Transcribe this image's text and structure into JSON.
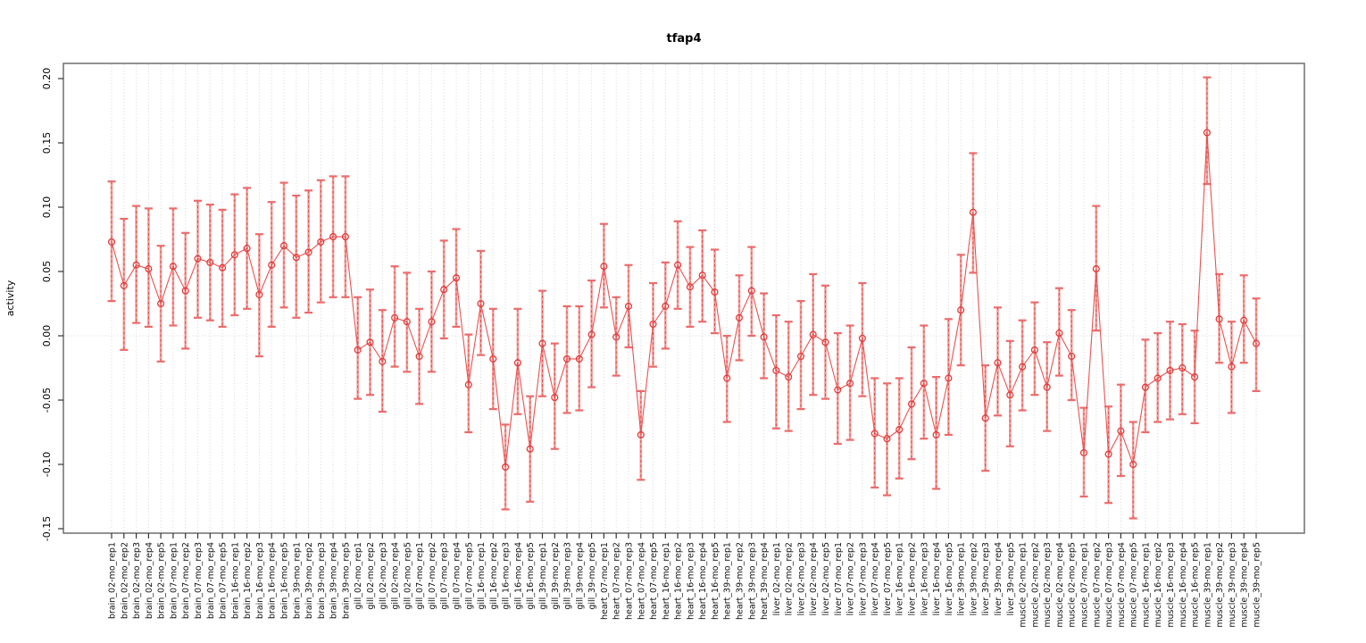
{
  "chart_data": {
    "type": "line",
    "title": "tfap4",
    "xlabel": "",
    "ylabel": "activity",
    "ylim": [
      -0.16,
      0.215
    ],
    "ytick_labels": [
      "0.20",
      "0.15",
      "0.10",
      "0.05",
      "0.00",
      "-0.05",
      "-0.10",
      "-0.15"
    ],
    "ytick_values": [
      0.2,
      0.15,
      0.1,
      0.05,
      0.0,
      -0.05,
      -0.1,
      -0.15
    ],
    "grid": "vertical dotted gridline at every category; horizontal dotted line at y=0; no legend",
    "point_style": "open circles with vertical error bars, connected by line",
    "categories": [
      "brain_02-mo_rep1",
      "brain_02-mo_rep2",
      "brain_02-mo_rep3",
      "brain_02-mo_rep4",
      "brain_02-mo_rep5",
      "brain_07-mo_rep1",
      "brain_07-mo_rep2",
      "brain_07-mo_rep3",
      "brain_07-mo_rep4",
      "brain_07-mo_rep5",
      "brain_16-mo_rep1",
      "brain_16-mo_rep2",
      "brain_16-mo_rep3",
      "brain_16-mo_rep4",
      "brain_16-mo_rep5",
      "brain_39-mo_rep1",
      "brain_39-mo_rep2",
      "brain_39-mo_rep3",
      "brain_39-mo_rep4",
      "brain_39-mo_rep5",
      "gill_02-mo_rep1",
      "gill_02-mo_rep2",
      "gill_02-mo_rep3",
      "gill_02-mo_rep4",
      "gill_02-mo_rep5",
      "gill_07-mo_rep1",
      "gill_07-mo_rep2",
      "gill_07-mo_rep3",
      "gill_07-mo_rep4",
      "gill_07-mo_rep5",
      "gill_16-mo_rep1",
      "gill_16-mo_rep2",
      "gill_16-mo_rep3",
      "gill_16-mo_rep4",
      "gill_16-mo_rep5",
      "gill_39-mo_rep1",
      "gill_39-mo_rep2",
      "gill_39-mo_rep3",
      "gill_39-mo_rep4",
      "gill_39-mo_rep5",
      "heart_07-mo_rep1",
      "heart_07-mo_rep2",
      "heart_07-mo_rep3",
      "heart_07-mo_rep4",
      "heart_07-mo_rep5",
      "heart_16-mo_rep1",
      "heart_16-mo_rep2",
      "heart_16-mo_rep3",
      "heart_16-mo_rep4",
      "heart_16-mo_rep5",
      "heart_39-mo_rep1",
      "heart_39-mo_rep2",
      "heart_39-mo_rep3",
      "heart_39-mo_rep4",
      "liver_02-mo_rep1",
      "liver_02-mo_rep2",
      "liver_02-mo_rep3",
      "liver_02-mo_rep4",
      "liver_02-mo_rep5",
      "liver_07-mo_rep1",
      "liver_07-mo_rep2",
      "liver_07-mo_rep3",
      "liver_07-mo_rep4",
      "liver_07-mo_rep5",
      "liver_16-mo_rep1",
      "liver_16-mo_rep2",
      "liver_16-mo_rep3",
      "liver_16-mo_rep4",
      "liver_16-mo_rep5",
      "liver_39-mo_rep1",
      "liver_39-mo_rep2",
      "liver_39-mo_rep3",
      "liver_39-mo_rep4",
      "liver_39-mo_rep5",
      "muscle_02-mo_rep1",
      "muscle_02-mo_rep2",
      "muscle_02-mo_rep3",
      "muscle_02-mo_rep4",
      "muscle_02-mo_rep5",
      "muscle_07-mo_rep1",
      "muscle_07-mo_rep2",
      "muscle_07-mo_rep3",
      "muscle_07-mo_rep4",
      "muscle_07-mo_rep5",
      "muscle_16-mo_rep1",
      "muscle_16-mo_rep2",
      "muscle_16-mo_rep3",
      "muscle_16-mo_rep4",
      "muscle_16-mo_rep5",
      "muscle_39-mo_rep1",
      "muscle_39-mo_rep2",
      "muscle_39-mo_rep3",
      "muscle_39-mo_rep4",
      "muscle_39-mo_rep5"
    ],
    "series": [
      {
        "name": "activity",
        "values": [
          0.073,
          0.039,
          0.055,
          0.052,
          0.025,
          0.054,
          0.035,
          0.06,
          0.057,
          0.053,
          0.063,
          0.068,
          0.032,
          0.055,
          0.07,
          0.061,
          0.065,
          0.073,
          0.077,
          0.077,
          -0.011,
          -0.005,
          -0.02,
          0.014,
          0.011,
          -0.016,
          0.011,
          0.036,
          0.045,
          -0.038,
          0.025,
          -0.018,
          -0.102,
          -0.021,
          -0.088,
          -0.006,
          -0.048,
          -0.018,
          -0.018,
          0.001,
          0.054,
          -0.001,
          0.023,
          -0.077,
          0.009,
          0.023,
          0.055,
          0.038,
          0.047,
          0.034,
          -0.033,
          0.014,
          0.035,
          -0.001,
          -0.027,
          -0.032,
          -0.016,
          0.001,
          -0.005,
          -0.042,
          -0.037,
          -0.002,
          -0.076,
          -0.08,
          -0.073,
          -0.053,
          -0.037,
          -0.077,
          -0.033,
          0.02,
          0.096,
          -0.064,
          -0.021,
          -0.046,
          -0.024,
          -0.011,
          -0.04,
          0.002,
          -0.016,
          -0.091,
          0.052,
          -0.092,
          -0.074,
          -0.1,
          -0.04,
          -0.033,
          -0.027,
          -0.025,
          -0.032,
          0.158,
          0.013,
          -0.024,
          0.012,
          -0.006
        ],
        "err_lo": [
          0.027,
          -0.011,
          0.01,
          0.007,
          -0.02,
          0.008,
          -0.01,
          0.014,
          0.012,
          0.007,
          0.016,
          0.021,
          -0.016,
          0.007,
          0.022,
          0.014,
          0.018,
          0.026,
          0.03,
          0.03,
          -0.049,
          -0.046,
          -0.059,
          -0.024,
          -0.028,
          -0.053,
          -0.028,
          -0.002,
          0.007,
          -0.075,
          -0.015,
          -0.057,
          -0.135,
          -0.061,
          -0.129,
          -0.047,
          -0.088,
          -0.06,
          -0.058,
          -0.04,
          0.022,
          -0.031,
          -0.009,
          -0.112,
          -0.024,
          -0.01,
          0.021,
          0.007,
          0.011,
          0.002,
          -0.067,
          -0.019,
          0.0,
          -0.033,
          -0.072,
          -0.074,
          -0.057,
          -0.046,
          -0.049,
          -0.084,
          -0.081,
          -0.047,
          -0.118,
          -0.124,
          -0.111,
          -0.096,
          -0.08,
          -0.119,
          -0.077,
          -0.023,
          0.049,
          -0.105,
          -0.062,
          -0.086,
          -0.058,
          -0.046,
          -0.074,
          -0.031,
          -0.05,
          -0.125,
          0.004,
          -0.13,
          -0.109,
          -0.142,
          -0.075,
          -0.067,
          -0.065,
          -0.061,
          -0.068,
          0.118,
          -0.021,
          -0.06,
          -0.021,
          -0.043
        ],
        "err_hi": [
          0.12,
          0.091,
          0.101,
          0.099,
          0.07,
          0.099,
          0.08,
          0.105,
          0.102,
          0.098,
          0.11,
          0.115,
          0.079,
          0.104,
          0.119,
          0.109,
          0.113,
          0.121,
          0.124,
          0.124,
          0.03,
          0.036,
          0.02,
          0.054,
          0.049,
          0.021,
          0.05,
          0.074,
          0.083,
          0.001,
          0.066,
          0.021,
          -0.069,
          0.021,
          -0.047,
          0.035,
          -0.006,
          0.023,
          0.023,
          0.043,
          0.087,
          0.03,
          0.055,
          -0.043,
          0.041,
          0.057,
          0.089,
          0.069,
          0.082,
          0.067,
          0.0,
          0.047,
          0.069,
          0.033,
          0.016,
          0.011,
          0.027,
          0.048,
          0.039,
          0.002,
          0.008,
          0.041,
          -0.033,
          -0.037,
          -0.033,
          -0.009,
          0.008,
          -0.032,
          0.013,
          0.063,
          0.142,
          -0.023,
          0.022,
          -0.004,
          0.012,
          0.026,
          -0.005,
          0.037,
          0.02,
          -0.056,
          0.101,
          -0.055,
          -0.038,
          -0.067,
          -0.003,
          0.002,
          0.011,
          0.009,
          0.004,
          0.201,
          0.048,
          0.011,
          0.047,
          0.029
        ]
      }
    ]
  },
  "colors": {
    "point": "#e23b3b",
    "line": "#e95252",
    "errorbar_stem": "#f2a09c",
    "errorbar_dash": "#e84a4a",
    "errorbar_cap": "#ec6b6b",
    "gridline": "#d6d6d6",
    "axis_box": "#6e6e6e",
    "tick": "#333333",
    "background": "#ffffff"
  }
}
